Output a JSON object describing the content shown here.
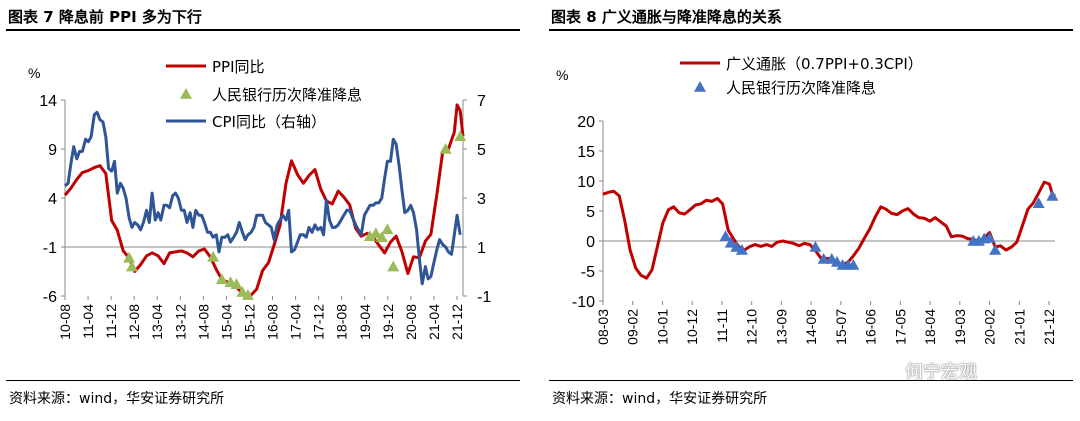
{
  "titles": {
    "left": "图表 7  降息前 PPI 多为下行",
    "right": "图表 8 广义通胀与降准降息的关系"
  },
  "source": {
    "left": "资料来源：wind，华安证券研究所",
    "right": "资料来源：wind，华安证券研究所"
  },
  "watermark": "何宁宏观",
  "colors": {
    "red": "#C00000",
    "blue": "#2F5597",
    "green": "#9BBB59",
    "tri_blue": "#4472C4"
  },
  "chart_data": [
    {
      "type": "line",
      "title": "降息前 PPI 多为下行",
      "ylabel": "%",
      "ylim": [
        -6,
        14
      ],
      "y_ticks": [
        14,
        9,
        4,
        -1,
        -6
      ],
      "y2lim": [
        -1,
        7
      ],
      "y2_ticks": [
        7,
        5,
        3,
        1,
        -1
      ],
      "x_start": 2010.58,
      "x_end": 2022.0,
      "x_ticks": [
        "10-08",
        "11-04",
        "11-12",
        "12-08",
        "13-04",
        "13-12",
        "14-08",
        "15-04",
        "15-12",
        "16-08",
        "17-04",
        "17-12",
        "18-08",
        "19-04",
        "19-12",
        "20-08",
        "21-04",
        "21-12"
      ],
      "series": [
        {
          "name": "PPI同比",
          "color": "#C00000",
          "axis": "left",
          "x": [
            2010.58,
            2010.75,
            2010.92,
            2011.08,
            2011.25,
            2011.42,
            2011.58,
            2011.75,
            2011.92,
            2012.08,
            2012.25,
            2012.42,
            2012.58,
            2012.75,
            2012.92,
            2013.08,
            2013.25,
            2013.42,
            2013.58,
            2013.75,
            2013.92,
            2014.08,
            2014.25,
            2014.42,
            2014.58,
            2014.75,
            2014.92,
            2015.08,
            2015.25,
            2015.42,
            2015.58,
            2015.75,
            2015.92,
            2016.08,
            2016.25,
            2016.42,
            2016.58,
            2016.75,
            2016.92,
            2017.08,
            2017.25,
            2017.42,
            2017.58,
            2017.75,
            2017.92,
            2018.08,
            2018.25,
            2018.42,
            2018.58,
            2018.75,
            2018.92,
            2019.08,
            2019.25,
            2019.42,
            2019.58,
            2019.75,
            2019.92,
            2020.08,
            2020.25,
            2020.42,
            2020.58,
            2020.75,
            2020.92,
            2021.08,
            2021.25,
            2021.42,
            2021.58,
            2021.75,
            2021.83,
            2021.92,
            2022.0
          ],
          "values": [
            4.3,
            5.0,
            5.9,
            6.6,
            6.8,
            7.1,
            7.3,
            6.5,
            1.7,
            0.7,
            -1.4,
            -2.1,
            -3.5,
            -2.8,
            -1.9,
            -1.6,
            -1.9,
            -2.7,
            -1.6,
            -1.5,
            -1.4,
            -1.6,
            -2.0,
            -1.4,
            -1.2,
            -2.0,
            -3.3,
            -4.3,
            -4.6,
            -4.8,
            -5.4,
            -5.9,
            -5.9,
            -5.3,
            -3.4,
            -2.6,
            -0.8,
            1.2,
            5.5,
            7.8,
            6.4,
            5.5,
            6.3,
            6.9,
            4.9,
            3.7,
            3.4,
            4.7,
            4.1,
            3.3,
            0.9,
            0.1,
            0.4,
            0.0,
            -0.8,
            -1.6,
            -0.5,
            0.1,
            -1.5,
            -3.7,
            -2.0,
            -2.1,
            -0.4,
            0.3,
            4.4,
            8.8,
            9.0,
            10.7,
            13.5,
            12.9,
            10.3
          ]
        },
        {
          "name": "CPI同比（右轴）",
          "color": "#2F5597",
          "axis": "right",
          "x": [
            2010.58,
            2010.67,
            2010.75,
            2010.83,
            2010.92,
            2011.0,
            2011.08,
            2011.17,
            2011.25,
            2011.33,
            2011.42,
            2011.5,
            2011.58,
            2011.67,
            2011.75,
            2011.83,
            2011.92,
            2012.0,
            2012.08,
            2012.17,
            2012.25,
            2012.33,
            2012.42,
            2012.5,
            2012.58,
            2012.67,
            2012.75,
            2012.83,
            2012.92,
            2013.0,
            2013.08,
            2013.17,
            2013.25,
            2013.33,
            2013.42,
            2013.5,
            2013.58,
            2013.67,
            2013.75,
            2013.83,
            2013.92,
            2014.0,
            2014.08,
            2014.17,
            2014.25,
            2014.33,
            2014.42,
            2014.5,
            2014.58,
            2014.67,
            2014.75,
            2014.83,
            2014.92,
            2015.0,
            2015.08,
            2015.17,
            2015.25,
            2015.33,
            2015.42,
            2015.5,
            2015.58,
            2015.67,
            2015.75,
            2015.83,
            2015.92,
            2016.0,
            2016.08,
            2016.17,
            2016.25,
            2016.33,
            2016.42,
            2016.5,
            2016.58,
            2016.67,
            2016.75,
            2016.83,
            2016.92,
            2017.0,
            2017.08,
            2017.17,
            2017.25,
            2017.33,
            2017.42,
            2017.5,
            2017.58,
            2017.67,
            2017.75,
            2017.83,
            2017.92,
            2018.0,
            2018.08,
            2018.17,
            2018.25,
            2018.33,
            2018.42,
            2018.5,
            2018.58,
            2018.67,
            2018.75,
            2018.83,
            2018.92,
            2019.0,
            2019.08,
            2019.17,
            2019.25,
            2019.33,
            2019.42,
            2019.5,
            2019.58,
            2019.67,
            2019.75,
            2019.83,
            2019.92,
            2020.0,
            2020.08,
            2020.17,
            2020.25,
            2020.33,
            2020.42,
            2020.5,
            2020.58,
            2020.67,
            2020.75,
            2020.83,
            2020.92,
            2021.0,
            2021.08,
            2021.17,
            2021.25,
            2021.33,
            2021.42,
            2021.5,
            2021.58,
            2021.67,
            2021.75,
            2021.83,
            2021.92
          ],
          "values": [
            3.5,
            3.6,
            4.4,
            5.1,
            4.6,
            4.9,
            4.9,
            5.4,
            5.3,
            5.5,
            6.4,
            6.5,
            6.2,
            6.1,
            5.5,
            4.2,
            4.1,
            4.5,
            3.2,
            3.6,
            3.4,
            3.0,
            2.2,
            1.8,
            2.0,
            1.9,
            1.7,
            2.0,
            2.5,
            2.0,
            3.2,
            2.1,
            2.4,
            2.1,
            2.7,
            2.7,
            2.6,
            3.1,
            3.2,
            3.0,
            2.5,
            2.5,
            2.0,
            2.4,
            1.8,
            2.5,
            2.3,
            2.3,
            2.0,
            1.6,
            1.6,
            1.4,
            1.5,
            0.8,
            1.4,
            1.4,
            1.5,
            1.2,
            1.4,
            1.6,
            2.0,
            1.6,
            1.3,
            1.5,
            1.6,
            1.8,
            2.3,
            2.3,
            2.3,
            2.0,
            1.9,
            1.8,
            1.3,
            1.9,
            2.1,
            2.3,
            2.1,
            2.5,
            0.8,
            0.9,
            1.2,
            1.5,
            1.5,
            1.4,
            1.8,
            1.6,
            1.9,
            1.7,
            1.8,
            1.5,
            2.9,
            2.1,
            1.8,
            1.8,
            1.9,
            2.1,
            2.3,
            2.5,
            2.5,
            2.2,
            1.9,
            1.7,
            1.5,
            2.3,
            2.5,
            2.7,
            2.7,
            2.8,
            2.8,
            3.0,
            3.8,
            4.5,
            4.5,
            5.4,
            5.2,
            4.3,
            3.3,
            2.4,
            2.5,
            2.7,
            2.4,
            1.7,
            0.5,
            -0.5,
            0.2,
            -0.3,
            -0.2,
            0.4,
            0.9,
            1.3,
            1.1,
            1.0,
            0.8,
            0.7,
            1.5,
            2.3,
            1.5
          ]
        }
      ],
      "markers": {
        "name": "人民银行历次降准降息",
        "color": "#9BBB59",
        "axis": "left",
        "x": [
          2012.42,
          2012.5,
          2014.83,
          2015.08,
          2015.33,
          2015.5,
          2015.67,
          2015.83,
          2019.33,
          2019.5,
          2019.67,
          2019.83,
          2020.0,
          2021.5,
          2021.92
        ],
        "values": [
          -2.1,
          -3.0,
          -2.0,
          -4.3,
          -4.6,
          -4.8,
          -5.6,
          -5.9,
          0.1,
          0.4,
          0.0,
          0.8,
          -3.0,
          9.0,
          10.3
        ]
      }
    },
    {
      "type": "line",
      "title": "广义通胀与降准降息的关系",
      "ylabel": "%",
      "ylim": [
        -10,
        20
      ],
      "y_ticks": [
        20,
        15,
        10,
        5,
        0,
        -5,
        -10
      ],
      "x_start": 2008.17,
      "x_end": 2022.0,
      "x_ticks": [
        "08-03",
        "09-02",
        "10-01",
        "10-12",
        "11-11",
        "12-10",
        "13-09",
        "14-08",
        "15-07",
        "16-06",
        "17-05",
        "18-04",
        "19-03",
        "20-02",
        "21-01",
        "21-12"
      ],
      "series": [
        {
          "name": "广义通胀（0.7PPI+0.3CPI）",
          "color": "#C00000",
          "x": [
            2008.17,
            2008.33,
            2008.5,
            2008.67,
            2008.83,
            2009.0,
            2009.17,
            2009.33,
            2009.5,
            2009.67,
            2009.83,
            2010.0,
            2010.17,
            2010.33,
            2010.5,
            2010.67,
            2010.83,
            2011.0,
            2011.17,
            2011.33,
            2011.5,
            2011.67,
            2011.83,
            2012.0,
            2012.17,
            2012.33,
            2012.5,
            2012.67,
            2012.83,
            2013.0,
            2013.17,
            2013.33,
            2013.5,
            2013.67,
            2013.83,
            2014.0,
            2014.17,
            2014.33,
            2014.5,
            2014.67,
            2014.83,
            2015.0,
            2015.17,
            2015.33,
            2015.5,
            2015.67,
            2015.83,
            2016.0,
            2016.17,
            2016.33,
            2016.5,
            2016.67,
            2016.83,
            2017.0,
            2017.17,
            2017.33,
            2017.5,
            2017.67,
            2017.83,
            2018.0,
            2018.17,
            2018.33,
            2018.5,
            2018.67,
            2018.83,
            2019.0,
            2019.17,
            2019.33,
            2019.5,
            2019.67,
            2019.83,
            2020.0,
            2020.17,
            2020.33,
            2020.5,
            2020.67,
            2020.83,
            2021.0,
            2021.17,
            2021.33,
            2021.5,
            2021.67,
            2021.83,
            2021.92,
            2022.0
          ],
          "values": [
            7.8,
            8.1,
            8.3,
            7.5,
            3.5,
            -1.5,
            -4.5,
            -5.7,
            -6.2,
            -4.8,
            -1.0,
            3.0,
            5.2,
            5.7,
            4.7,
            4.5,
            5.2,
            6.0,
            6.2,
            6.8,
            6.6,
            7.1,
            6.2,
            1.8,
            0.3,
            -1.0,
            -1.5,
            -0.9,
            -0.6,
            -0.9,
            -0.6,
            -0.9,
            -0.2,
            0.0,
            -0.2,
            -0.4,
            -0.8,
            -0.4,
            -0.6,
            -1.6,
            -2.8,
            -2.9,
            -3.0,
            -3.8,
            -4.0,
            -3.5,
            -2.5,
            -1.2,
            0.5,
            2.0,
            4.0,
            5.7,
            5.3,
            4.6,
            4.4,
            5.0,
            5.4,
            4.5,
            3.9,
            3.8,
            3.3,
            3.9,
            3.2,
            2.5,
            0.7,
            0.9,
            0.8,
            0.4,
            0.3,
            -0.1,
            0.5,
            1.4,
            -1.0,
            -0.8,
            -1.5,
            -1.0,
            -0.2,
            2.5,
            5.3,
            6.3,
            8.0,
            9.8,
            9.5,
            7.8,
            7.5
          ]
        }
      ],
      "markers": {
        "name": "人民银行历次降准降息",
        "color": "#4472C4",
        "x": [
          2011.92,
          2012.08,
          2012.25,
          2012.42,
          2014.67,
          2014.92,
          2015.17,
          2015.33,
          2015.5,
          2015.67,
          2015.83,
          2019.5,
          2019.67,
          2019.83,
          2020.0,
          2020.17,
          2021.5,
          2021.92
        ],
        "values": [
          0.8,
          -0.3,
          -1.0,
          -1.5,
          -1.0,
          -3.0,
          -3.0,
          -3.5,
          -4.0,
          -4.0,
          -4.0,
          0.0,
          0.0,
          0.4,
          0.5,
          -1.5,
          6.3,
          7.5
        ]
      }
    }
  ]
}
